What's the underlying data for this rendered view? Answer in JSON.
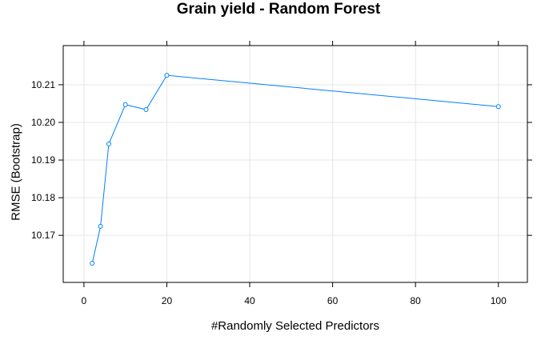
{
  "chart_data": {
    "type": "line",
    "title": "Grain yield - Random Forest",
    "xlabel": "#Randomly Selected Predictors",
    "ylabel": "RMSE (Bootstrap)",
    "x": [
      2,
      4,
      6,
      10,
      15,
      20,
      100
    ],
    "y": [
      10.1626,
      10.1724,
      10.1943,
      10.2047,
      10.2034,
      10.2125,
      10.2042
    ],
    "xlim": [
      -5,
      107
    ],
    "ylim": [
      10.1575,
      10.2204
    ],
    "xticks": [
      0,
      20,
      40,
      60,
      80,
      100
    ],
    "yticks": [
      10.17,
      10.18,
      10.19,
      10.2,
      10.21
    ],
    "xtick_labels": [
      "0",
      "20",
      "40",
      "60",
      "80",
      "100"
    ],
    "ytick_labels": [
      "10.17",
      "10.18",
      "10.19",
      "10.20",
      "10.21"
    ],
    "grid": true,
    "line_color": "#0080ff",
    "marker": "open-circle"
  }
}
